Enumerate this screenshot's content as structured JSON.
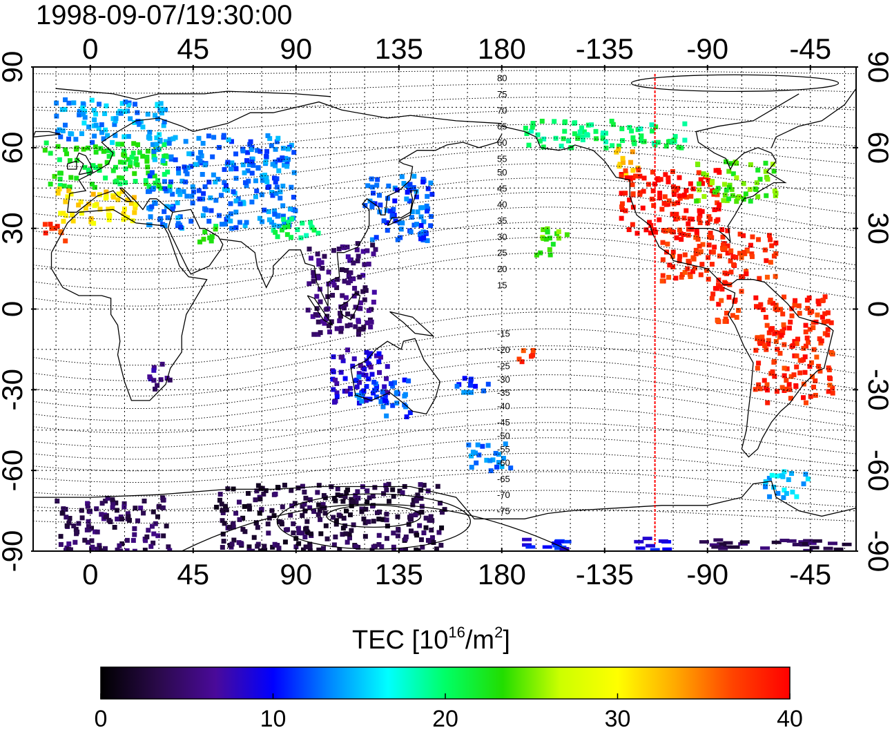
{
  "title": "1998-09-07/19:30:00",
  "colorbar": {
    "label_prefix": "TEC  [10",
    "label_exp1": "16",
    "label_mid": "/m",
    "label_exp2": "2",
    "label_suffix": "]",
    "ticks": [
      "0",
      "10",
      "20",
      "30",
      "40"
    ],
    "range": [
      0,
      40
    ],
    "stops": [
      "#000000",
      "#2a0a4a",
      "#4a0a9a",
      "#0000ff",
      "#0088ff",
      "#00ffff",
      "#00ff66",
      "#22dd00",
      "#ccff00",
      "#ffff00",
      "#ffaa00",
      "#ff4400",
      "#ff0000"
    ]
  },
  "axes": {
    "x_ticks_top": [
      "0",
      "45",
      "90",
      "135",
      "180",
      "-135",
      "-90",
      "-45"
    ],
    "x_ticks_bottom": [
      "0",
      "45",
      "90",
      "135",
      "180",
      "-135",
      "-90",
      "-45"
    ],
    "x_tick_lon": [
      0,
      45,
      90,
      135,
      180,
      225,
      270,
      315
    ],
    "y_ticks_left": [
      "90",
      "60",
      "30",
      "0",
      "-30",
      "-60",
      "-90"
    ],
    "y_ticks_right": [
      "90",
      "60",
      "30",
      "0",
      "-30",
      "-60",
      "-90"
    ],
    "y_tick_lat": [
      90,
      60,
      30,
      0,
      -30,
      -60,
      -90
    ],
    "lon_range": [
      -25,
      335
    ],
    "lat_range": [
      -90,
      90
    ],
    "grid": true,
    "grid_lon_step": 15,
    "grid_lat_step": 15
  },
  "contour_labels": [
    "80",
    "75",
    "70",
    "65",
    "60",
    "55",
    "50",
    "45",
    "40",
    "35",
    "30",
    "25",
    "20",
    "15",
    "-15",
    "-20",
    "-25",
    "-30",
    "-35",
    "-40",
    "-45",
    "-50",
    "-55",
    "-60",
    "-65",
    "-70",
    "-75"
  ],
  "contour_label_lats": [
    86,
    80,
    74,
    68,
    62,
    56,
    51,
    45,
    39,
    33,
    27,
    21,
    15,
    9,
    -9,
    -15,
    -21,
    -26,
    -31,
    -36,
    -42,
    -47,
    -52,
    -57,
    -63,
    -69,
    -75
  ],
  "red_line_lon": 247,
  "chart_data": {
    "type": "heatmap",
    "title": "1998-09-07/19:30:00",
    "xlabel": "",
    "ylabel": "",
    "colorbar_label": "TEC  [10^16/m^2]",
    "colorbar_ticks": [
      0,
      10,
      20,
      30,
      40
    ],
    "xlim": [
      -25,
      335
    ],
    "ylim": [
      -90,
      90
    ],
    "xticks": [
      "0",
      "45",
      "90",
      "135",
      "180",
      "-135",
      "-90",
      "-45"
    ],
    "yticks": [
      "90",
      "60",
      "30",
      "0",
      "-30",
      "-60",
      "-90"
    ],
    "grid": true,
    "regions": [
      {
        "lon": [
          -15,
          35
        ],
        "lat": [
          62,
          78
        ],
        "tec": 14
      },
      {
        "lon": [
          -20,
          35
        ],
        "lat": [
          45,
          62
        ],
        "tec": 22
      },
      {
        "lon": [
          -15,
          20
        ],
        "lat": [
          32,
          45
        ],
        "tec": 31
      },
      {
        "lon": [
          -20,
          -10
        ],
        "lat": [
          24,
          32
        ],
        "tec": 37
      },
      {
        "lon": [
          25,
          90
        ],
        "lat": [
          30,
          65
        ],
        "tec": 13
      },
      {
        "lon": [
          45,
          55
        ],
        "lat": [
          25,
          32
        ],
        "tec": 22
      },
      {
        "lon": [
          80,
          100
        ],
        "lat": [
          25,
          34
        ],
        "tec": 20
      },
      {
        "lon": [
          120,
          150
        ],
        "lat": [
          25,
          50
        ],
        "tec": 12
      },
      {
        "lon": [
          95,
          125
        ],
        "lat": [
          -10,
          25
        ],
        "tec": 5
      },
      {
        "lon": [
          105,
          130
        ],
        "lat": [
          -35,
          -15
        ],
        "tec": 8
      },
      {
        "lon": [
          115,
          140
        ],
        "lat": [
          -40,
          -25
        ],
        "tec": 12
      },
      {
        "lon": [
          25,
          35
        ],
        "lat": [
          -30,
          -20
        ],
        "tec": 6
      },
      {
        "lon": [
          -15,
          35
        ],
        "lat": [
          -90,
          -70
        ],
        "tec": 4
      },
      {
        "lon": [
          55,
          155
        ],
        "lat": [
          -90,
          -65
        ],
        "tec": 3
      },
      {
        "lon": [
          165,
          185
        ],
        "lat": [
          -60,
          -50
        ],
        "tec": 13
      },
      {
        "lon": [
          160,
          175
        ],
        "lat": [
          -32,
          -25
        ],
        "tec": 12
      },
      {
        "lon": [
          185,
          195
        ],
        "lat": [
          -20,
          -15
        ],
        "tec": 38
      },
      {
        "lon": [
          195,
          210
        ],
        "lat": [
          20,
          30
        ],
        "tec": 24
      },
      {
        "lon": [
          190,
          260
        ],
        "lat": [
          60,
          70
        ],
        "tec": 20
      },
      {
        "lon": [
          230,
          240
        ],
        "lat": [
          50,
          60
        ],
        "tec": 32
      },
      {
        "lon": [
          230,
          275
        ],
        "lat": [
          28,
          52
        ],
        "tec": 39
      },
      {
        "lon": [
          265,
          300
        ],
        "lat": [
          40,
          55
        ],
        "tec": 24
      },
      {
        "lon": [
          250,
          300
        ],
        "lat": [
          10,
          30
        ],
        "tec": 38
      },
      {
        "lon": [
          270,
          285
        ],
        "lat": [
          -5,
          10
        ],
        "tec": 38
      },
      {
        "lon": [
          290,
          325
        ],
        "lat": [
          -35,
          5
        ],
        "tec": 38
      },
      {
        "lon": [
          295,
          315
        ],
        "lat": [
          -70,
          -60
        ],
        "tec": 15
      },
      {
        "lon": [
          188,
          210
        ],
        "lat": [
          -90,
          -85
        ],
        "tec": 10
      },
      {
        "lon": [
          238,
          252
        ],
        "lat": [
          -90,
          -85
        ],
        "tec": 10
      },
      {
        "lon": [
          265,
          330
        ],
        "lat": [
          -90,
          -86
        ],
        "tec": 4
      }
    ]
  }
}
